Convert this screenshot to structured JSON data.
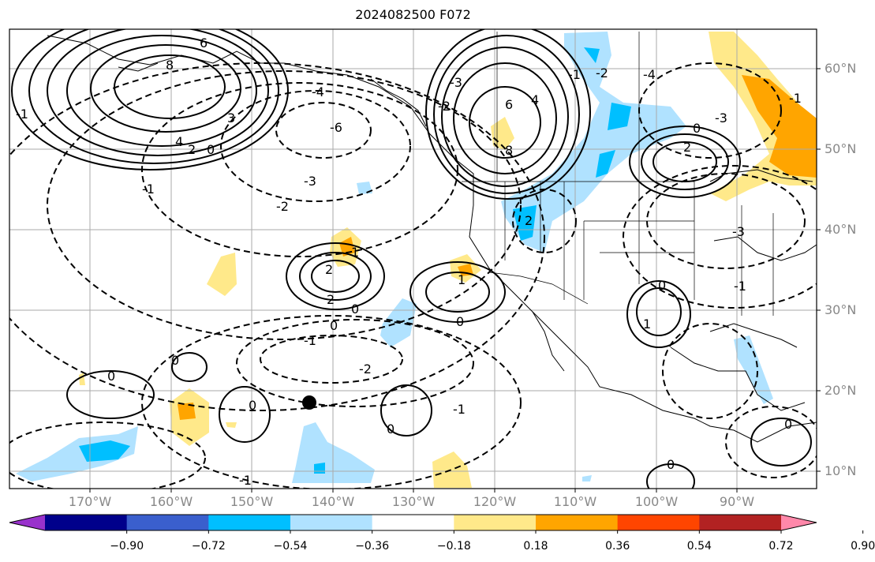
{
  "title": "2024082500 F072",
  "lat_labels": [
    "60°N",
    "50°N",
    "40°N",
    "30°N",
    "20°N",
    "10°N"
  ],
  "lon_labels": [
    "170°W",
    "160°W",
    "150°W",
    "140°W",
    "130°W",
    "120°W",
    "110°W",
    "100°W",
    "90°W"
  ],
  "colorbar": {
    "labels": [
      "−0.90",
      "−0.72",
      "−0.54",
      "−0.36",
      "−0.18",
      "0.18",
      "0.36",
      "0.54",
      "0.72",
      "0.90"
    ],
    "colors": [
      "#9932cc",
      "#00008b",
      "#3a5fcd",
      "#00bfff",
      "#b0e2ff",
      "#ffffff",
      "#ffe98a",
      "#ffa500",
      "#ff4500",
      "#b22222",
      "#ff88aa"
    ]
  },
  "contour_labels": {
    "solid": [
      "6",
      "8",
      "4",
      "2",
      "0",
      "3",
      "6",
      "4",
      "8",
      "2",
      "0",
      "2",
      "0",
      "2",
      "0",
      "2",
      "1",
      "0",
      "1",
      "0",
      "1",
      "0",
      "0",
      "0",
      "0",
      "0"
    ],
    "dashed": [
      "-1",
      "-2",
      "-3",
      "-4",
      "-6",
      "-3",
      "-2",
      "-1",
      "0",
      "-1",
      "-2",
      "-1",
      "-1",
      "-3",
      "-1",
      "-4",
      "-3",
      "-1",
      "-1",
      "-2"
    ]
  },
  "marker": "storm-center-dot"
}
